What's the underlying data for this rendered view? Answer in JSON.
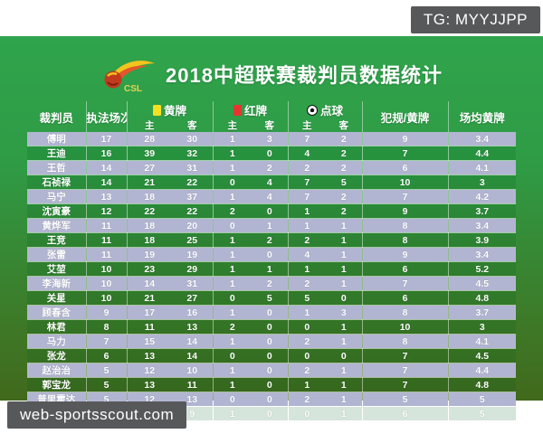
{
  "badges": {
    "top_right": "TG: MYYJJPP",
    "bottom_left": "web-sportsscout.com"
  },
  "header": {
    "title": "2018中超联赛裁判员数据统计",
    "logo_text": "CSL"
  },
  "table_header": {
    "referee": "裁判员",
    "matches": "执法场次",
    "yellow": "黄牌",
    "red": "红牌",
    "penalty": "点球",
    "fouls_per_yellow": "犯规/黄牌",
    "avg_yellow": "场均黄牌",
    "home": "主",
    "away": "客"
  },
  "icons": {
    "yellow_card": "yellow-card-icon",
    "red_card": "red-card-icon",
    "soccer_ball": "soccer-ball-icon"
  },
  "colors": {
    "green-top": "#2fa44c",
    "green-bot": "#41691c",
    "lavender": "#b2b5d2",
    "badge": "#57585a",
    "yellow": "#f6e01f",
    "red": "#e53530"
  },
  "chart_data": {
    "type": "table",
    "title": "2018中超联赛裁判员数据统计",
    "columns": [
      "裁判员",
      "执法场次",
      "黄牌主",
      "黄牌客",
      "红牌主",
      "红牌客",
      "点球主",
      "点球客",
      "犯规/黄牌",
      "场均黄牌"
    ],
    "rows": [
      [
        "傅明",
        17,
        28,
        30,
        1,
        3,
        7,
        2,
        9,
        "3.4"
      ],
      [
        "王迪",
        16,
        39,
        32,
        1,
        0,
        4,
        2,
        7,
        "4.4"
      ],
      [
        "王哲",
        14,
        27,
        31,
        1,
        2,
        2,
        2,
        6,
        "4.1"
      ],
      [
        "石祯禄",
        14,
        21,
        22,
        0,
        4,
        7,
        5,
        10,
        "3"
      ],
      [
        "马宁",
        13,
        18,
        37,
        1,
        4,
        7,
        2,
        7,
        "4.2"
      ],
      [
        "沈寅豪",
        12,
        22,
        22,
        2,
        0,
        1,
        2,
        9,
        "3.7"
      ],
      [
        "黄烨军",
        11,
        18,
        20,
        0,
        1,
        1,
        1,
        8,
        "3.4"
      ],
      [
        "王竞",
        11,
        18,
        25,
        1,
        2,
        2,
        1,
        8,
        "3.9"
      ],
      [
        "张雷",
        11,
        19,
        19,
        1,
        0,
        4,
        1,
        9,
        "3.4"
      ],
      [
        "艾堃",
        10,
        23,
        29,
        1,
        1,
        1,
        1,
        6,
        "5.2"
      ],
      [
        "李海新",
        10,
        14,
        31,
        1,
        2,
        2,
        1,
        7,
        "4.5"
      ],
      [
        "关星",
        10,
        21,
        27,
        0,
        5,
        5,
        0,
        6,
        "4.8"
      ],
      [
        "顾春含",
        9,
        17,
        16,
        1,
        0,
        1,
        3,
        8,
        "3.7"
      ],
      [
        "林君",
        8,
        11,
        13,
        2,
        0,
        0,
        1,
        10,
        "3"
      ],
      [
        "马力",
        7,
        15,
        14,
        1,
        0,
        2,
        1,
        8,
        "4.1"
      ],
      [
        "张龙",
        6,
        13,
        14,
        0,
        0,
        0,
        0,
        7,
        "4.5"
      ],
      [
        "赵治治",
        5,
        12,
        10,
        1,
        0,
        2,
        1,
        7,
        "4.4"
      ],
      [
        "郭宝龙",
        5,
        13,
        11,
        1,
        0,
        1,
        1,
        7,
        "4.8"
      ],
      [
        "普里霍达",
        5,
        12,
        13,
        0,
        0,
        2,
        1,
        5,
        "5"
      ],
      [
        "伊尔马托夫",
        4,
        10,
        9,
        1,
        0,
        0,
        1,
        6,
        "5"
      ]
    ]
  }
}
